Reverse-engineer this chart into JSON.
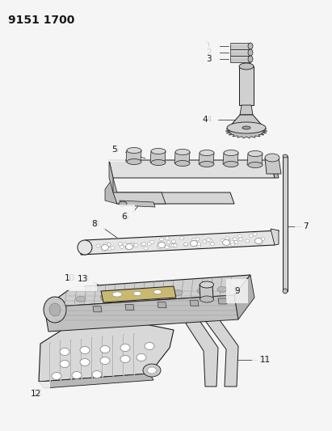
{
  "title": "9151 1700",
  "bg_color": "#f5f5f5",
  "line_color": "#1a1a1a",
  "label_color": "#111111",
  "title_fontsize": 10,
  "label_fontsize": 7.5,
  "figsize": [
    4.11,
    5.33
  ],
  "dpi": 100
}
